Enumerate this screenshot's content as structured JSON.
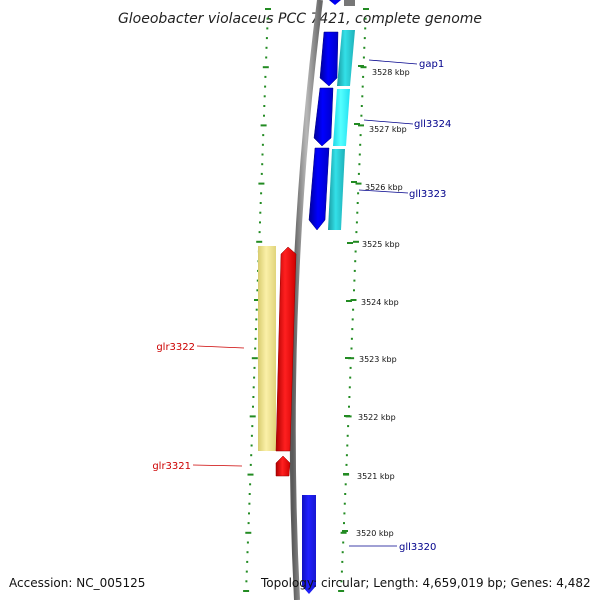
{
  "title": "Gloeobacter violaceus PCC 7421, complete genome",
  "accession_text": "Accession: NC_005125",
  "summary_text": "Topology: circular; Length: 4,659,019 bp; Genes: 4,482",
  "colors": {
    "backbone": "#888888",
    "forward_cds": "#0000ee",
    "forward_feature": "#22c0c8",
    "reverse_cds": "#ff0000",
    "reverse_feature": "#f0e68c",
    "tick": "#228b22",
    "forward_label": "#00008b",
    "reverse_label": "#cc0000"
  },
  "ticks": [
    {
      "label": "3528 kbp"
    },
    {
      "label": "3527 kbp"
    },
    {
      "label": "3526 kbp"
    },
    {
      "label": "3525 kbp"
    },
    {
      "label": "3524 kbp"
    },
    {
      "label": "3523 kbp"
    },
    {
      "label": "3522 kbp"
    },
    {
      "label": "3521 kbp"
    },
    {
      "label": "3520 kbp"
    }
  ],
  "genes": [
    {
      "name": "gap1",
      "strand": "forward"
    },
    {
      "name": "gll3324",
      "strand": "forward"
    },
    {
      "name": "gll3323",
      "strand": "forward"
    },
    {
      "name": "glr3322",
      "strand": "reverse"
    },
    {
      "name": "glr3321",
      "strand": "reverse"
    },
    {
      "name": "gll3320",
      "strand": "forward"
    }
  ]
}
